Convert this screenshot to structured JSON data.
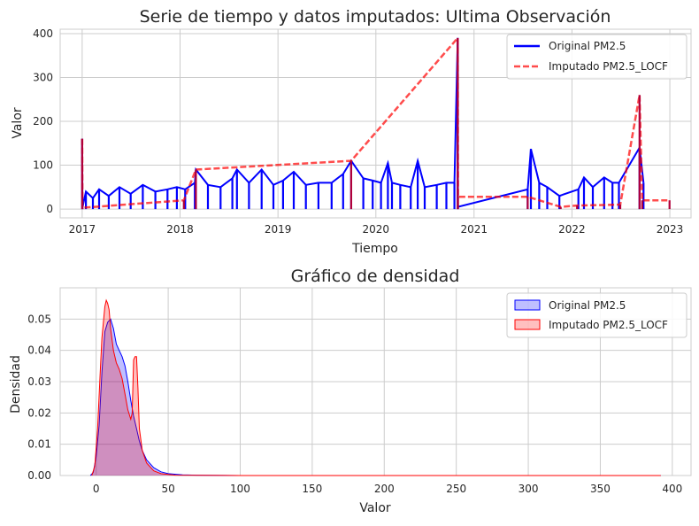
{
  "chart_data": [
    {
      "type": "line",
      "title": "Serie de tiempo y datos imputados: Ultima Observación",
      "xlabel": "Tiempo",
      "ylabel": "Valor",
      "xlim": [
        "2016-10-11",
        "2023-03-21"
      ],
      "ylim": [
        -20,
        410
      ],
      "x_ticks": [
        "2017",
        "2018",
        "2019",
        "2020",
        "2021",
        "2022",
        "2023"
      ],
      "y_ticks": [
        0,
        100,
        200,
        300,
        400
      ],
      "grid": true,
      "legend_position": "top-right",
      "series": [
        {
          "name": "Original PM2.5",
          "color": "#0000ff",
          "style": "solid",
          "points": [
            [
              "2017-01-01",
              160
            ],
            [
              "2017-01-02",
              3
            ],
            [
              "2017-01-15",
              40
            ],
            [
              "2017-02-10",
              25
            ],
            [
              "2017-03-05",
              45
            ],
            [
              "2017-04-10",
              30
            ],
            [
              "2017-05-20",
              50
            ],
            [
              "2017-07-01",
              35
            ],
            [
              "2017-08-15",
              55
            ],
            [
              "2017-10-01",
              40
            ],
            [
              "2017-11-15",
              45
            ],
            [
              "2017-12-20",
              50
            ],
            [
              "2018-01-20",
              45
            ],
            [
              "2018-02-25",
              60
            ],
            [
              "2018-03-01",
              90
            ],
            [
              "2018-04-15",
              55
            ],
            [
              "2018-06-01",
              50
            ],
            [
              "2018-07-15",
              70
            ],
            [
              "2018-08-01",
              90
            ],
            [
              "2018-09-15",
              60
            ],
            [
              "2018-11-01",
              90
            ],
            [
              "2018-12-15",
              55
            ],
            [
              "2019-01-20",
              65
            ],
            [
              "2019-03-01",
              85
            ],
            [
              "2019-04-15",
              55
            ],
            [
              "2019-06-01",
              60
            ],
            [
              "2019-07-20",
              60
            ],
            [
              "2019-09-01",
              80
            ],
            [
              "2019-10-01",
              110
            ],
            [
              "2019-11-15",
              70
            ],
            [
              "2019-12-20",
              65
            ],
            [
              "2020-01-20",
              60
            ],
            [
              "2020-02-15",
              105
            ],
            [
              "2020-03-01",
              60
            ],
            [
              "2020-04-01",
              55
            ],
            [
              "2020-05-10",
              50
            ],
            [
              "2020-06-05",
              110
            ],
            [
              "2020-07-01",
              50
            ],
            [
              "2020-08-15",
              55
            ],
            [
              "2020-09-20",
              60
            ],
            [
              "2020-10-20",
              60
            ],
            [
              "2020-11-01",
              390
            ],
            [
              "2020-11-02",
              5
            ],
            [
              "2021-07-20",
              45
            ],
            [
              "2021-08-01",
              137
            ],
            [
              "2021-09-01",
              60
            ],
            [
              "2021-10-01",
              50
            ],
            [
              "2021-11-15",
              30
            ],
            [
              "2022-01-25",
              45
            ],
            [
              "2022-02-15",
              72
            ],
            [
              "2022-03-20",
              50
            ],
            [
              "2022-05-01",
              72
            ],
            [
              "2022-06-01",
              60
            ],
            [
              "2022-06-25",
              60
            ],
            [
              "2022-09-10",
              140
            ],
            [
              "2022-09-25",
              60
            ]
          ]
        },
        {
          "name": "Imputado PM2.5_LOCF",
          "color": "#ff0000",
          "style": "dashed",
          "points": [
            [
              "2017-01-01",
              160
            ],
            [
              "2017-01-02",
              3
            ],
            [
              "2018-01-15",
              20
            ],
            [
              "2018-03-01",
              90
            ],
            [
              "2019-10-01",
              110
            ],
            [
              "2020-11-01",
              390
            ],
            [
              "2020-11-02",
              28
            ],
            [
              "2021-07-20",
              28
            ],
            [
              "2021-11-20",
              5
            ],
            [
              "2022-01-20",
              8
            ],
            [
              "2022-06-30",
              10
            ],
            [
              "2022-09-10",
              260
            ],
            [
              "2022-09-20",
              20
            ],
            [
              "2022-12-31",
              20
            ]
          ]
        }
      ]
    },
    {
      "type": "area",
      "title": "Gráfico de densidad",
      "xlabel": "Valor",
      "ylabel": "Densidad",
      "xlim": [
        -25,
        413
      ],
      "ylim": [
        0,
        0.06
      ],
      "x_ticks": [
        0,
        50,
        100,
        150,
        200,
        250,
        300,
        350,
        400
      ],
      "y_ticks": [
        "0.00",
        "0.01",
        "0.02",
        "0.03",
        "0.04",
        "0.05"
      ],
      "grid": true,
      "legend_position": "top-right",
      "series": [
        {
          "name": "Original PM2.5",
          "color": "#0000ff",
          "x": [
            -4,
            -2,
            0,
            2,
            4,
            6,
            8,
            10,
            12,
            14,
            16,
            18,
            20,
            22,
            24,
            26,
            28,
            30,
            32,
            35,
            40,
            45,
            50,
            60,
            70,
            100,
            200,
            300,
            392
          ],
          "y": [
            0,
            0.001,
            0.006,
            0.016,
            0.033,
            0.046,
            0.049,
            0.05,
            0.047,
            0.042,
            0.04,
            0.038,
            0.035,
            0.03,
            0.024,
            0.019,
            0.015,
            0.011,
            0.008,
            0.005,
            0.0025,
            0.0012,
            0.0006,
            0.0002,
            0.0001,
            0,
            0,
            0,
            0
          ]
        },
        {
          "name": "Imputado PM2.5_LOCF",
          "color": "#ff0000",
          "x": [
            -3,
            -1,
            1,
            3,
            4,
            6,
            7,
            8,
            9,
            10,
            12,
            14,
            16,
            18,
            20,
            22,
            24,
            25,
            26,
            27,
            28,
            29,
            30,
            32,
            35,
            40,
            45,
            55,
            100,
            200,
            300,
            392
          ],
          "y": [
            0,
            0.003,
            0.015,
            0.035,
            0.044,
            0.054,
            0.056,
            0.055,
            0.053,
            0.047,
            0.04,
            0.036,
            0.034,
            0.031,
            0.026,
            0.021,
            0.018,
            0.02,
            0.037,
            0.038,
            0.038,
            0.028,
            0.015,
            0.008,
            0.004,
            0.0015,
            0.0006,
            0.0001,
            0,
            0,
            0,
            0
          ]
        }
      ]
    }
  ]
}
